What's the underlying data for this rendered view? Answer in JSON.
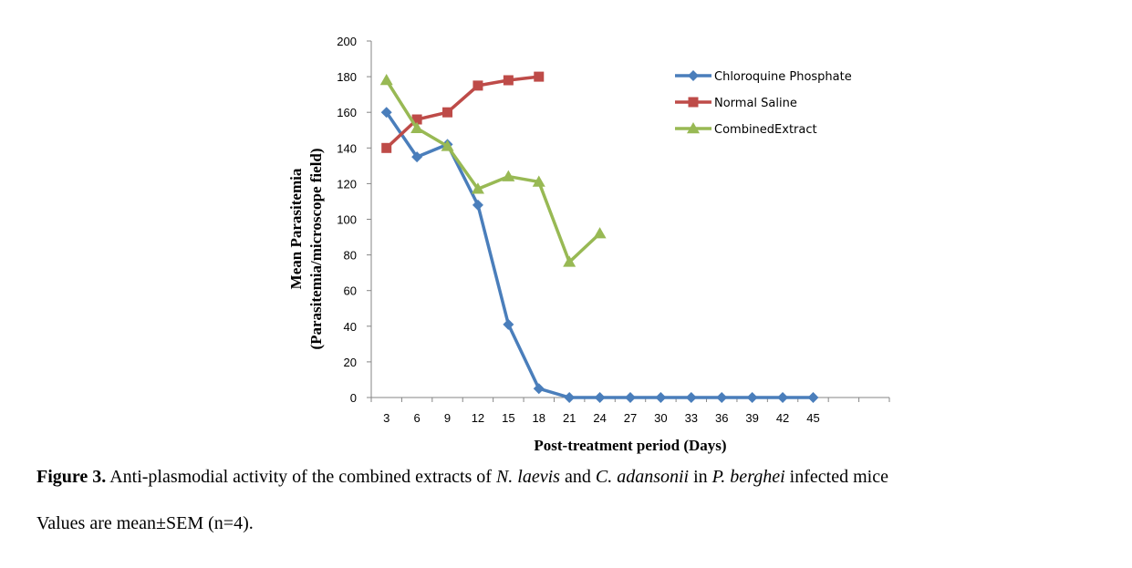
{
  "chart_data": {
    "type": "line",
    "title": "",
    "xlabel": "Post-treatment period (Days)",
    "ylabel": "Mean Parasitemia",
    "ylabel2": "(Parasitemia/microscope field)",
    "ylim": [
      0,
      200
    ],
    "yticks": [
      0,
      20,
      40,
      60,
      80,
      100,
      120,
      140,
      160,
      180,
      200
    ],
    "categories": [
      "3",
      "6",
      "9",
      "12",
      "15",
      "18",
      "21",
      "24",
      "27",
      "30",
      "33",
      "36",
      "39",
      "42",
      "45"
    ],
    "grid": false,
    "legend_position": "top-right",
    "series": [
      {
        "name": "Chloroquine Phosphate",
        "color": "#4a7ebb",
        "marker": "diamond",
        "values": [
          160,
          135,
          142,
          108,
          41,
          5,
          0,
          0,
          0,
          0,
          0,
          0,
          0,
          0,
          0
        ]
      },
      {
        "name": "Normal Saline",
        "color": "#be4b48",
        "marker": "square",
        "values": [
          140,
          156,
          160,
          175,
          178,
          180,
          null,
          null,
          null,
          null,
          null,
          null,
          null,
          null,
          null
        ]
      },
      {
        "name": "CombinedExtract",
        "color": "#98b954",
        "marker": "triangle",
        "values": [
          178,
          151,
          141,
          117,
          124,
          121,
          76,
          92,
          null,
          null,
          null,
          null,
          null,
          null,
          null
        ]
      }
    ]
  },
  "caption": {
    "fig_label": "Figure 3.",
    "text_1": " Anti-plasmodial activity of the combined extracts of ",
    "sp_1": "N. laevis",
    "text_2": " and ",
    "sp_2": "C. adansonii",
    "text_3": " in ",
    "sp_3": "P. berghei",
    "text_4": " infected mice",
    "note": "Values are mean±SEM (n=4)."
  }
}
